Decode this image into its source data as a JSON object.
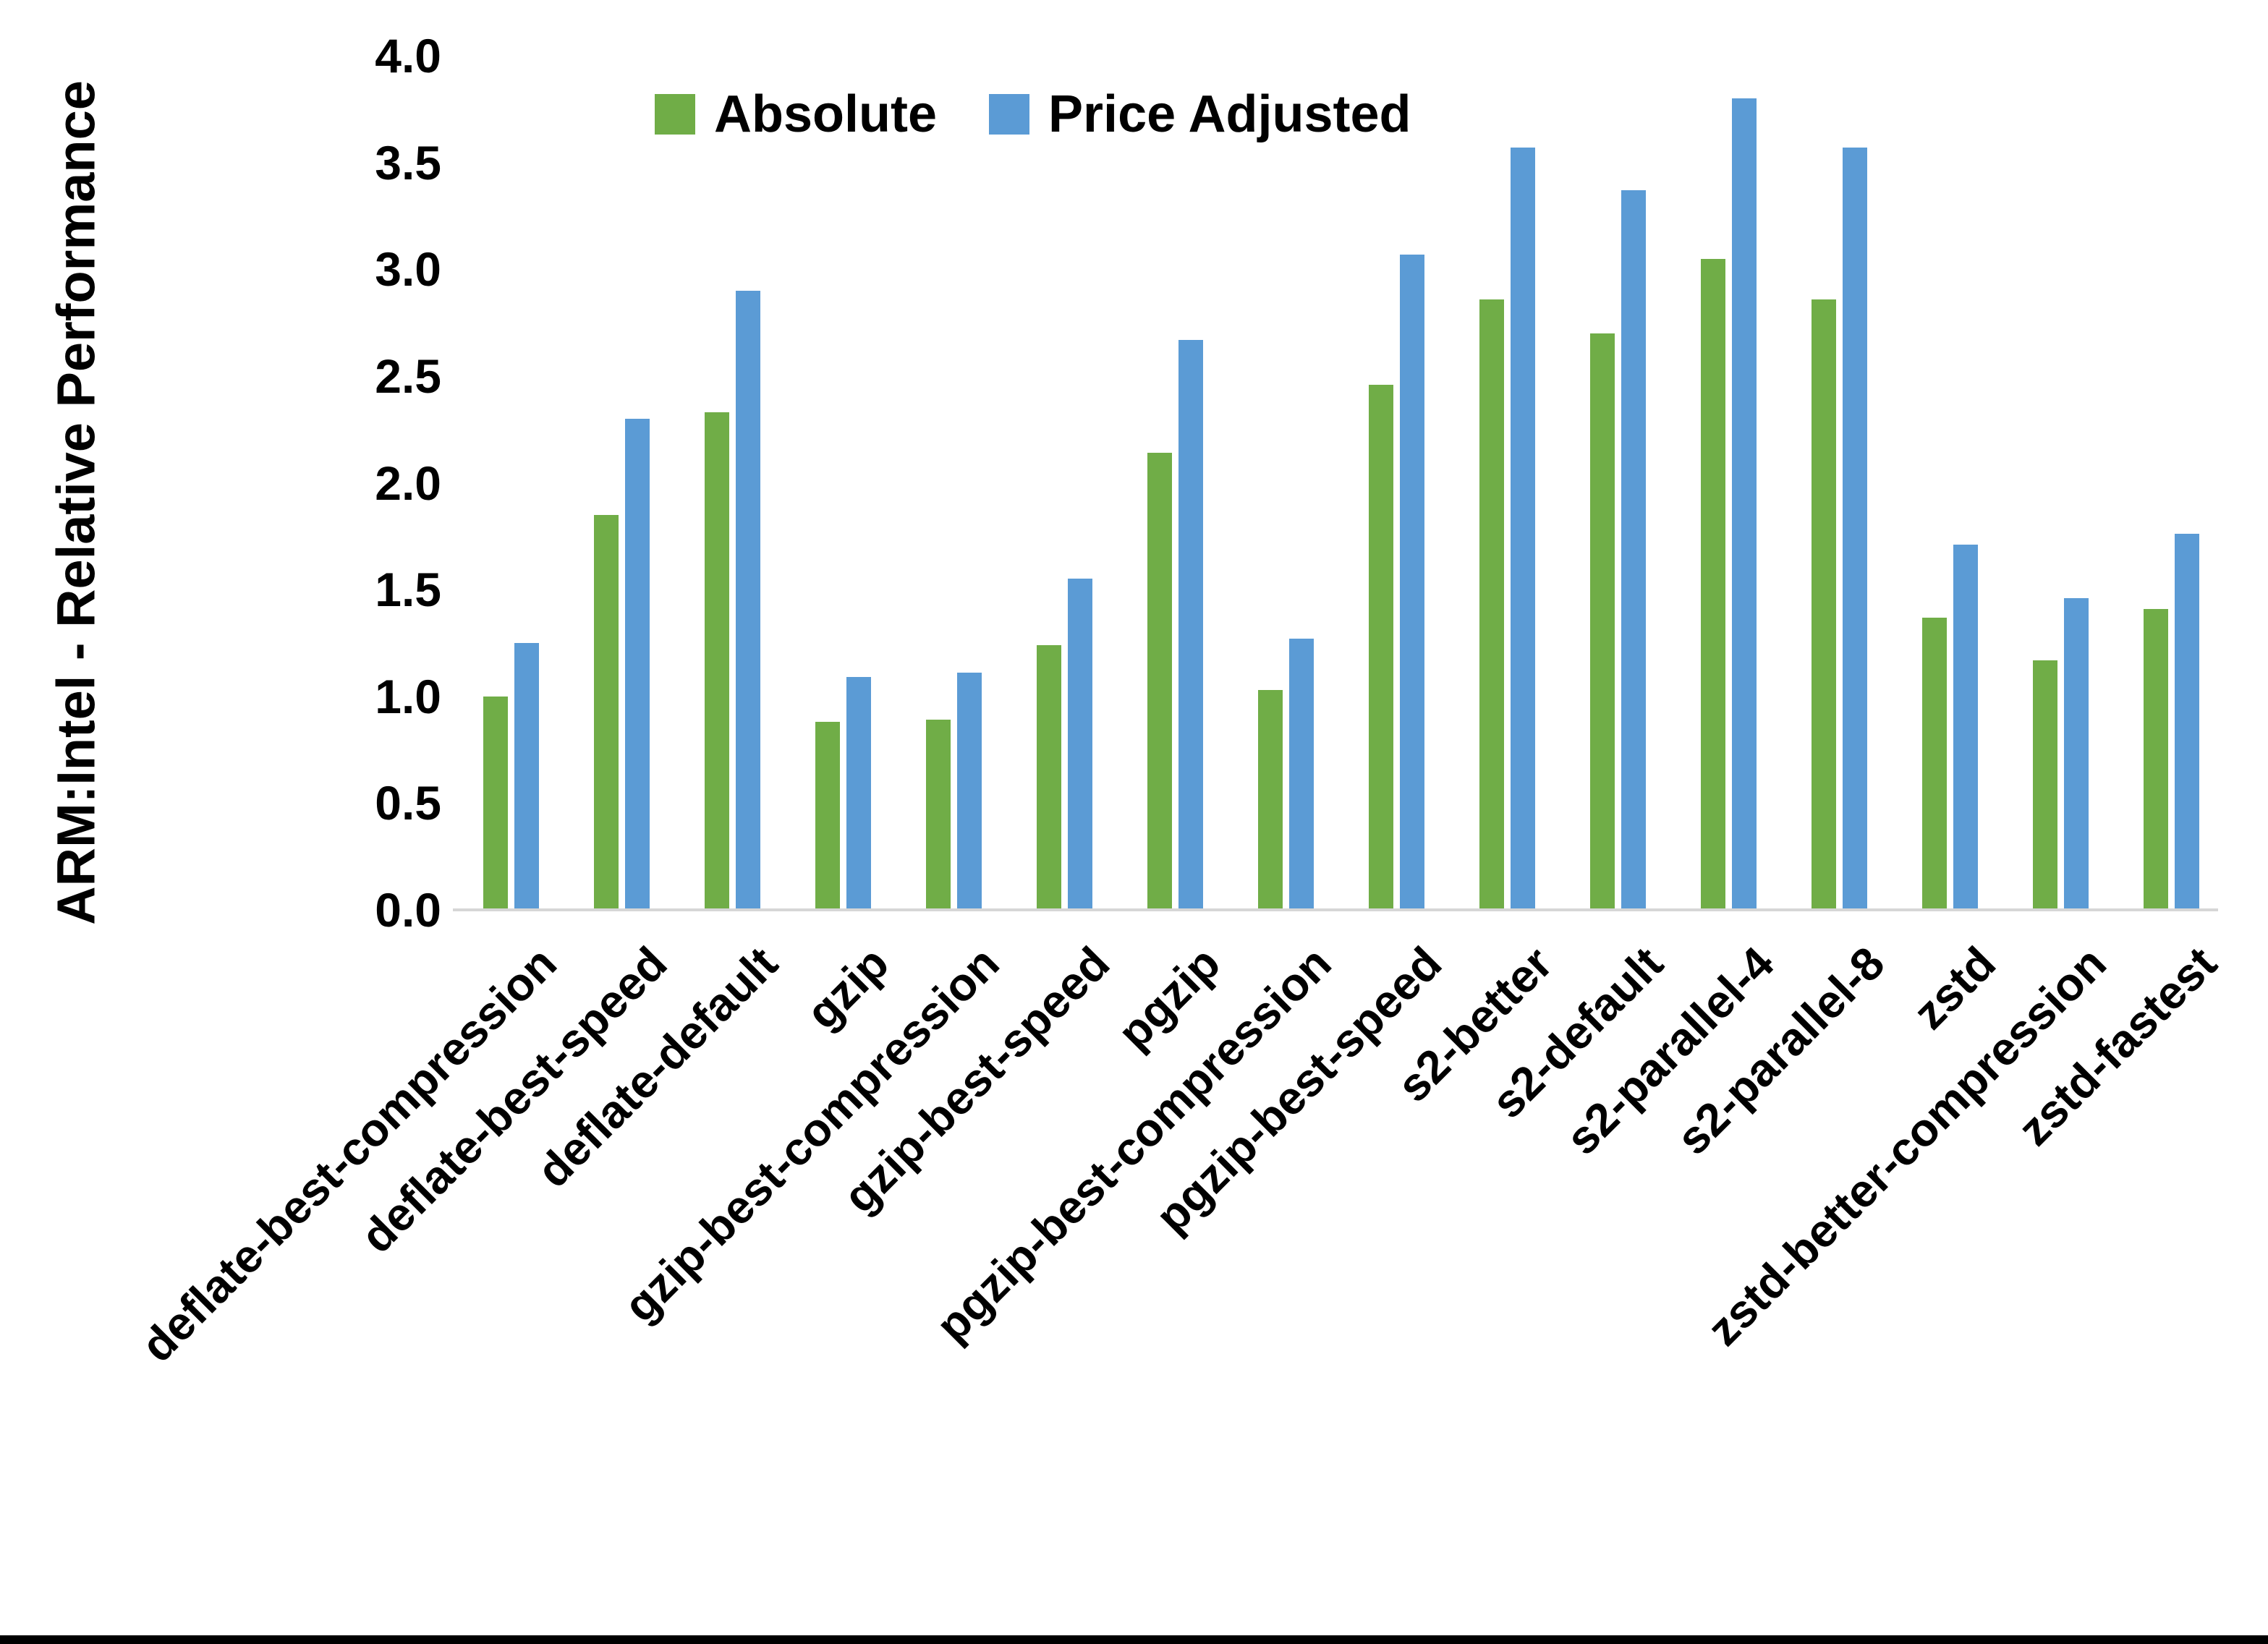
{
  "chart_data": {
    "type": "bar",
    "title": "",
    "xlabel": "",
    "ylabel": "ARM:Intel - Relative Performance",
    "ylim": [
      0,
      4
    ],
    "ytick_step": 0.5,
    "yticks": [
      "0.0",
      "0.5",
      "1.0",
      "1.5",
      "2.0",
      "2.5",
      "3.0",
      "3.5",
      "4.0"
    ],
    "grid": false,
    "legend_position": "top-center",
    "categories": [
      "deflate-best-compression",
      "deflate-best-speed",
      "deflate-default",
      "gzip",
      "gzip-best-compression",
      "gzip-best-speed",
      "pgzip",
      "pgzip-best-compression",
      "pgzip-best-speed",
      "s2-better",
      "s2-default",
      "s2-parallel-4",
      "s2-parallel-8",
      "zstd",
      "zstd-better-compression",
      "zstd-fastest"
    ],
    "series": [
      {
        "name": "Absolute",
        "color": "#70AD47",
        "values": [
          1.0,
          1.85,
          2.33,
          0.88,
          0.89,
          1.24,
          2.14,
          1.03,
          2.46,
          2.86,
          2.7,
          3.05,
          2.86,
          1.37,
          1.17,
          1.41
        ]
      },
      {
        "name": "Price Adjusted",
        "color": "#5B9BD5",
        "values": [
          1.25,
          2.3,
          2.9,
          1.09,
          1.11,
          1.55,
          2.67,
          1.27,
          3.07,
          3.57,
          3.37,
          3.8,
          3.57,
          1.71,
          1.46,
          1.76
        ]
      }
    ]
  }
}
